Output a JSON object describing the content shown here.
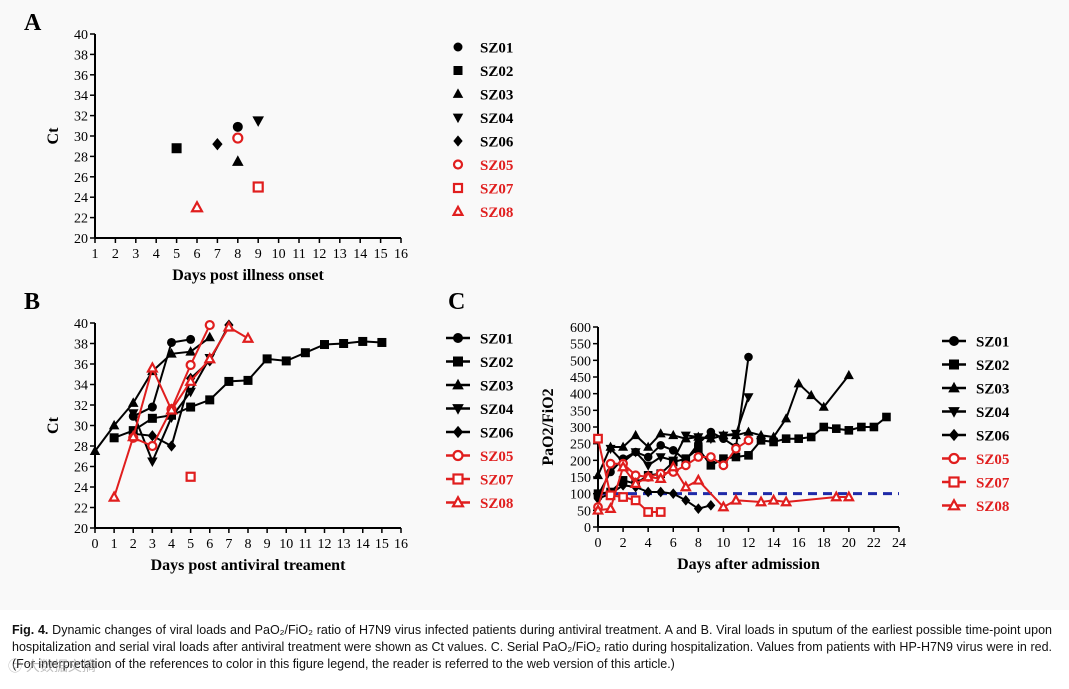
{
  "panels": {
    "a": "A",
    "b": "B",
    "c": "C"
  },
  "chart_data": [
    {
      "panel": "A",
      "type": "scatter",
      "xlabel": "Days post illness onset",
      "ylabel": "Ct",
      "xlim": [
        1,
        16
      ],
      "ylim": [
        20,
        40
      ],
      "xticks": [
        "1",
        "2",
        "3",
        "4",
        "5",
        "6",
        "7",
        "8",
        "9",
        "10",
        "11",
        "12",
        "13",
        "14",
        "15",
        "16"
      ],
      "yticks": [
        "20",
        "22",
        "24",
        "26",
        "28",
        "30",
        "32",
        "34",
        "36",
        "38",
        "40"
      ],
      "legend": [
        {
          "name": "SZ01",
          "marker": "circle",
          "color": "#000000"
        },
        {
          "name": "SZ02",
          "marker": "square",
          "color": "#000000"
        },
        {
          "name": "SZ03",
          "marker": "triangle",
          "color": "#000000"
        },
        {
          "name": "SZ04",
          "marker": "triangle-down",
          "color": "#000000"
        },
        {
          "name": "SZ06",
          "marker": "diamond",
          "color": "#000000"
        },
        {
          "name": "SZ05",
          "marker": "circle-open",
          "color": "#e01e1e"
        },
        {
          "name": "SZ07",
          "marker": "square-open",
          "color": "#e01e1e"
        },
        {
          "name": "SZ08",
          "marker": "triangle-open",
          "color": "#e01e1e"
        }
      ],
      "series": [
        {
          "name": "SZ01",
          "points": [
            [
              8,
              30.9
            ]
          ]
        },
        {
          "name": "SZ02",
          "points": [
            [
              5,
              28.8
            ]
          ]
        },
        {
          "name": "SZ03",
          "points": [
            [
              8,
              27.5
            ]
          ]
        },
        {
          "name": "SZ04",
          "points": [
            [
              9,
              31.5
            ]
          ]
        },
        {
          "name": "SZ06",
          "points": [
            [
              7,
              29.2
            ]
          ]
        },
        {
          "name": "SZ05",
          "points": [
            [
              8,
              29.8
            ]
          ]
        },
        {
          "name": "SZ07",
          "points": [
            [
              9,
              25
            ]
          ]
        },
        {
          "name": "SZ08",
          "points": [
            [
              6,
              23
            ]
          ]
        }
      ]
    },
    {
      "panel": "B",
      "type": "line",
      "xlabel": "Days post antiviral treament",
      "ylabel": "Ct",
      "xlim": [
        0,
        16
      ],
      "ylim": [
        20,
        40
      ],
      "xticks": [
        "0",
        "1",
        "2",
        "3",
        "4",
        "5",
        "6",
        "7",
        "8",
        "9",
        "10",
        "11",
        "12",
        "13",
        "14",
        "15",
        "16"
      ],
      "yticks": [
        "20",
        "22",
        "24",
        "26",
        "28",
        "30",
        "32",
        "34",
        "36",
        "38",
        "40"
      ],
      "legend": [
        {
          "name": "SZ01",
          "marker": "circle",
          "color": "#000000"
        },
        {
          "name": "SZ02",
          "marker": "square",
          "color": "#000000"
        },
        {
          "name": "SZ03",
          "marker": "triangle",
          "color": "#000000"
        },
        {
          "name": "SZ04",
          "marker": "triangle-down",
          "color": "#000000"
        },
        {
          "name": "SZ06",
          "marker": "diamond",
          "color": "#000000"
        },
        {
          "name": "SZ05",
          "marker": "circle-open",
          "color": "#e01e1e"
        },
        {
          "name": "SZ07",
          "marker": "square-open",
          "color": "#e01e1e"
        },
        {
          "name": "SZ08",
          "marker": "triangle-open",
          "color": "#e01e1e"
        }
      ],
      "series": [
        {
          "name": "SZ01",
          "points": [
            [
              2,
              30.9
            ],
            [
              3,
              31.8
            ],
            [
              4,
              38.1
            ],
            [
              5,
              38.4
            ]
          ]
        },
        {
          "name": "SZ02",
          "points": [
            [
              1,
              28.8
            ],
            [
              2,
              29.5
            ],
            [
              3,
              30.7
            ],
            [
              4,
              31.0
            ],
            [
              5,
              31.8
            ],
            [
              6,
              32.5
            ],
            [
              7,
              34.3
            ],
            [
              8,
              34.4
            ],
            [
              9,
              36.5
            ],
            [
              10,
              36.3
            ],
            [
              11,
              37.1
            ],
            [
              12,
              37.9
            ],
            [
              13,
              38.0
            ],
            [
              14,
              38.2
            ],
            [
              15,
              38.1
            ]
          ]
        },
        {
          "name": "SZ03",
          "points": [
            [
              0,
              27.5
            ],
            [
              1,
              30.0
            ],
            [
              2,
              32.2
            ],
            [
              3,
              35.3
            ],
            [
              4,
              37.0
            ],
            [
              5,
              37.2
            ],
            [
              6,
              38.6
            ]
          ]
        },
        {
          "name": "SZ04",
          "points": [
            [
              2,
              31.2
            ],
            [
              3,
              26.5
            ],
            [
              4,
              30.8
            ],
            [
              5,
              33.3
            ],
            [
              6,
              36.6
            ]
          ]
        },
        {
          "name": "SZ06",
          "points": [
            [
              2,
              29.2
            ],
            [
              3,
              29.0
            ],
            [
              4,
              28.0
            ],
            [
              5,
              34.6
            ],
            [
              6,
              36.3
            ],
            [
              7,
              39.8
            ]
          ]
        },
        {
          "name": "SZ05",
          "points": [
            [
              2,
              28.8
            ],
            [
              3,
              28.0
            ],
            [
              4,
              31.6
            ],
            [
              5,
              35.9
            ],
            [
              6,
              39.8
            ]
          ]
        },
        {
          "name": "SZ07",
          "points": [
            [
              5,
              25
            ]
          ]
        },
        {
          "name": "SZ08",
          "points": [
            [
              1,
              23
            ],
            [
              2,
              28.9
            ],
            [
              3,
              35.6
            ],
            [
              4,
              31.5
            ],
            [
              5,
              34.3
            ],
            [
              6,
              36.5
            ],
            [
              7,
              39.6
            ],
            [
              8,
              38.5
            ]
          ]
        }
      ]
    },
    {
      "panel": "C",
      "type": "line",
      "xlabel": "Days after admission",
      "ylabel": "PaO2/FiO2",
      "xlim": [
        0,
        24
      ],
      "ylim": [
        0,
        600
      ],
      "xticks": [
        "0",
        "2",
        "4",
        "6",
        "8",
        "10",
        "12",
        "14",
        "16",
        "18",
        "20",
        "22",
        "24"
      ],
      "yticks": [
        "0",
        "50",
        "100",
        "150",
        "200",
        "250",
        "300",
        "350",
        "400",
        "450",
        "500",
        "550",
        "600"
      ],
      "reference_line": {
        "y": 100,
        "color": "#1f2aa8",
        "style": "dashed"
      },
      "legend": [
        {
          "name": "SZ01",
          "marker": "circle",
          "color": "#000000"
        },
        {
          "name": "SZ02",
          "marker": "square",
          "color": "#000000"
        },
        {
          "name": "SZ03",
          "marker": "triangle",
          "color": "#000000"
        },
        {
          "name": "SZ04",
          "marker": "triangle-down",
          "color": "#000000"
        },
        {
          "name": "SZ06",
          "marker": "diamond",
          "color": "#000000"
        },
        {
          "name": "SZ05",
          "marker": "circle-open",
          "color": "#e01e1e"
        },
        {
          "name": "SZ07",
          "marker": "square-open",
          "color": "#e01e1e"
        },
        {
          "name": "SZ08",
          "marker": "triangle-open",
          "color": "#e01e1e"
        }
      ],
      "series": [
        {
          "name": "SZ01",
          "points": [
            [
              0,
              95
            ],
            [
              1,
              165
            ],
            [
              2,
              205
            ],
            [
              3,
              225
            ],
            [
              4,
              210
            ],
            [
              5,
              245
            ],
            [
              6,
              230
            ],
            [
              7,
              200
            ],
            [
              8,
              250
            ],
            [
              9,
              285
            ],
            [
              10,
              265
            ],
            [
              11,
              240
            ],
            [
              12,
              510
            ]
          ]
        },
        {
          "name": "SZ02",
          "points": [
            [
              0,
              100
            ],
            [
              1,
              105
            ],
            [
              2,
              140
            ],
            [
              3,
              130
            ],
            [
              4,
              155
            ],
            [
              5,
              160
            ],
            [
              6,
              195
            ],
            [
              7,
              205
            ],
            [
              8,
              235
            ],
            [
              9,
              185
            ],
            [
              10,
              205
            ],
            [
              11,
              210
            ],
            [
              12,
              215
            ],
            [
              13,
              260
            ],
            [
              14,
              255
            ],
            [
              15,
              265
            ],
            [
              16,
              265
            ],
            [
              17,
              270
            ],
            [
              18,
              300
            ],
            [
              19,
              295
            ],
            [
              20,
              290
            ],
            [
              21,
              300
            ],
            [
              22,
              300
            ],
            [
              23,
              330
            ]
          ]
        },
        {
          "name": "SZ03",
          "points": [
            [
              0,
              155
            ],
            [
              1,
              240
            ],
            [
              2,
              240
            ],
            [
              3,
              275
            ],
            [
              4,
              240
            ],
            [
              5,
              280
            ],
            [
              6,
              275
            ],
            [
              7,
              265
            ],
            [
              8,
              270
            ],
            [
              9,
              265
            ],
            [
              10,
              275
            ],
            [
              11,
              275
            ],
            [
              12,
              285
            ],
            [
              13,
              275
            ],
            [
              14,
              270
            ],
            [
              15,
              325
            ],
            [
              16,
              430
            ],
            [
              17,
              395
            ],
            [
              18,
              360
            ],
            [
              20,
              455
            ]
          ]
        },
        {
          "name": "SZ04",
          "points": [
            [
              1,
              235
            ],
            [
              2,
              195
            ],
            [
              3,
              225
            ],
            [
              4,
              185
            ],
            [
              5,
              210
            ],
            [
              6,
              200
            ],
            [
              7,
              275
            ],
            [
              8,
              270
            ],
            [
              9,
              265
            ],
            [
              10,
              275
            ],
            [
              11,
              280
            ],
            [
              12,
              390
            ]
          ]
        },
        {
          "name": "SZ06",
          "points": [
            [
              0,
              85
            ],
            [
              1,
              100
            ],
            [
              2,
              125
            ],
            [
              3,
              120
            ],
            [
              4,
              105
            ],
            [
              5,
              105
            ],
            [
              6,
              100
            ],
            [
              7,
              80
            ],
            [
              8,
              55
            ],
            [
              9,
              65
            ]
          ]
        },
        {
          "name": "SZ05",
          "points": [
            [
              0,
              60
            ],
            [
              1,
              190
            ],
            [
              2,
              190
            ],
            [
              3,
              155
            ],
            [
              4,
              150
            ],
            [
              5,
              160
            ],
            [
              6,
              165
            ],
            [
              7,
              185
            ],
            [
              8,
              210
            ],
            [
              9,
              210
            ],
            [
              10,
              185
            ],
            [
              11,
              235
            ],
            [
              12,
              260
            ]
          ]
        },
        {
          "name": "SZ07",
          "points": [
            [
              0,
              265
            ],
            [
              1,
              95
            ],
            [
              2,
              90
            ],
            [
              3,
              80
            ],
            [
              4,
              45
            ],
            [
              5,
              45
            ]
          ]
        },
        {
          "name": "SZ08",
          "points": [
            [
              0,
              50
            ],
            [
              1,
              55
            ],
            [
              2,
              180
            ],
            [
              3,
              130
            ],
            [
              4,
              150
            ],
            [
              5,
              145
            ],
            [
              6,
              180
            ],
            [
              7,
              120
            ],
            [
              8,
              140
            ],
            [
              10,
              60
            ],
            [
              11,
              80
            ],
            [
              13,
              75
            ],
            [
              14,
              80
            ],
            [
              15,
              75
            ],
            [
              19,
              90
            ],
            [
              20,
              90
            ]
          ]
        }
      ]
    }
  ],
  "caption": {
    "label": "Fig. 4.",
    "text": "Dynamic changes of viral loads and PaO₂/FiO₂ ratio of H7N9 virus infected patients during antiviral treatment. A and B. Viral loads in sputum of the earliest possible time-point upon hospitalization and serial viral loads after antiviral treatment were shown as Ct values. C. Serial PaO₂/FiO₂ ratio during hospitalization. Values from patients with HP-H7N9 virus were in red. (For interpretation of the references to color in this figure legend, the reader is referred to the web version of this article.)"
  }
}
